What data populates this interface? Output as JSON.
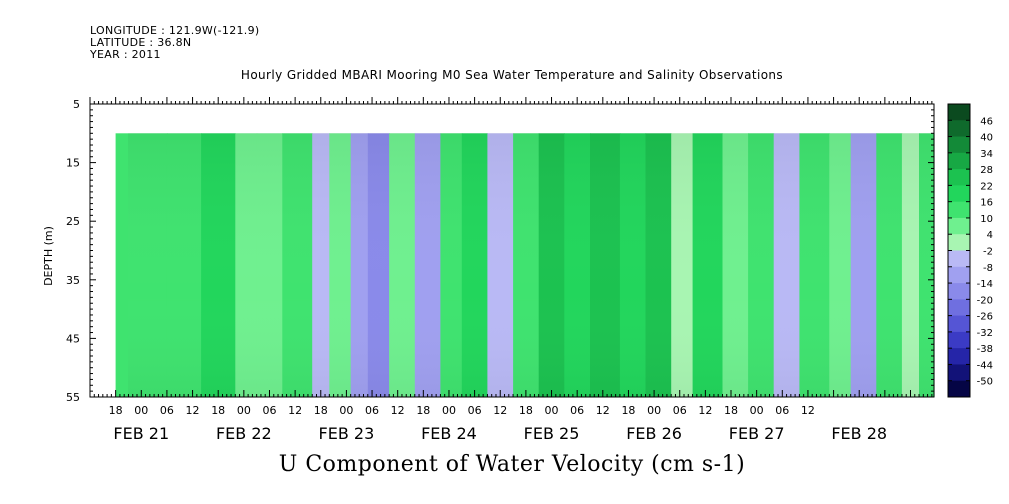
{
  "header": {
    "longitude": "LONGITUDE : 121.9W(-121.9)",
    "latitude": "LATITUDE : 36.8N",
    "year": "YEAR : 2011"
  },
  "chart_data": {
    "type": "heatmap",
    "title": "Hourly Gridded MBARI Mooring M0 Sea Water Temperature and Salinity Observations",
    "xlabel": "U Component of Water Velocity (cm s-1)",
    "ylabel": "DEPTH (m)",
    "ylim": [
      55,
      5
    ],
    "y_ticks": [
      "5",
      "15",
      "25",
      "35",
      "45",
      "55"
    ],
    "x_time_ticks": [
      "18",
      "00",
      "06",
      "12",
      "18",
      "00",
      "06",
      "12",
      "18",
      "00",
      "06",
      "12",
      "18",
      "00",
      "06",
      "12",
      "18",
      "00",
      "06",
      "12",
      "18",
      "00",
      "06",
      "12",
      "18",
      "00",
      "06",
      "12"
    ],
    "x_date_labels": [
      "FEB 21",
      "FEB 22",
      "FEB 23",
      "FEB 24",
      "FEB 25",
      "FEB 26",
      "FEB 27",
      "FEB 28"
    ],
    "colorbar_levels": [
      "46",
      "40",
      "34",
      "28",
      "22",
      "16",
      "10",
      "4",
      "-2",
      "-8",
      "-14",
      "-20",
      "-26",
      "-32",
      "-38",
      "-44",
      "-50"
    ],
    "colorbar_colors": [
      "#0b4a1f",
      "#0f6a2c",
      "#138a38",
      "#17a844",
      "#1cc250",
      "#22d65c",
      "#3fe36f",
      "#6ff08f",
      "#a8f5b2",
      "#b9b9f5",
      "#a0a0f0",
      "#8a8aea",
      "#6f6fe0",
      "#5555d5",
      "#3b3bc5",
      "#2525a8",
      "#121278",
      "#050545"
    ],
    "time_range": [
      "2011-02-20 18:00",
      "2011-02-28 14:00"
    ],
    "depth_range": [
      10,
      55
    ],
    "velocity_columns": [
      {
        "t": "2011-02-20 18:00",
        "u": 10
      },
      {
        "t": "2011-02-21 06:00",
        "u": 14
      },
      {
        "t": "2011-02-21 14:00",
        "u": 18
      },
      {
        "t": "2011-02-21 22:00",
        "u": 8
      },
      {
        "t": "2011-02-22 03:00",
        "u": 4
      },
      {
        "t": "2011-02-22 09:00",
        "u": 12
      },
      {
        "t": "2011-02-22 16:00",
        "u": -8
      },
      {
        "t": "2011-02-22 20:00",
        "u": 6
      },
      {
        "t": "2011-02-23 01:00",
        "u": -14
      },
      {
        "t": "2011-02-23 05:00",
        "u": -20
      },
      {
        "t": "2011-02-23 10:00",
        "u": 8
      },
      {
        "t": "2011-02-23 16:00",
        "u": -14
      },
      {
        "t": "2011-02-23 22:00",
        "u": 12
      },
      {
        "t": "2011-02-24 03:00",
        "u": 18
      },
      {
        "t": "2011-02-24 09:00",
        "u": -6
      },
      {
        "t": "2011-02-24 15:00",
        "u": 12
      },
      {
        "t": "2011-02-24 21:00",
        "u": 22
      },
      {
        "t": "2011-02-25 03:00",
        "u": 16
      },
      {
        "t": "2011-02-25 09:00",
        "u": 26
      },
      {
        "t": "2011-02-25 16:00",
        "u": 20
      },
      {
        "t": "2011-02-25 22:00",
        "u": 24
      },
      {
        "t": "2011-02-26 04:00",
        "u": 2
      },
      {
        "t": "2011-02-26 09:00",
        "u": 18
      },
      {
        "t": "2011-02-26 16:00",
        "u": 6
      },
      {
        "t": "2011-02-26 22:00",
        "u": 14
      },
      {
        "t": "2011-02-27 04:00",
        "u": -8
      },
      {
        "t": "2011-02-27 10:00",
        "u": 10
      },
      {
        "t": "2011-02-27 17:00",
        "u": 4
      },
      {
        "t": "2011-02-27 22:00",
        "u": -10
      },
      {
        "t": "2011-02-28 04:00",
        "u": 12
      },
      {
        "t": "2011-02-28 10:00",
        "u": 2
      },
      {
        "t": "2011-02-28 14:00",
        "u": 14
      }
    ]
  }
}
